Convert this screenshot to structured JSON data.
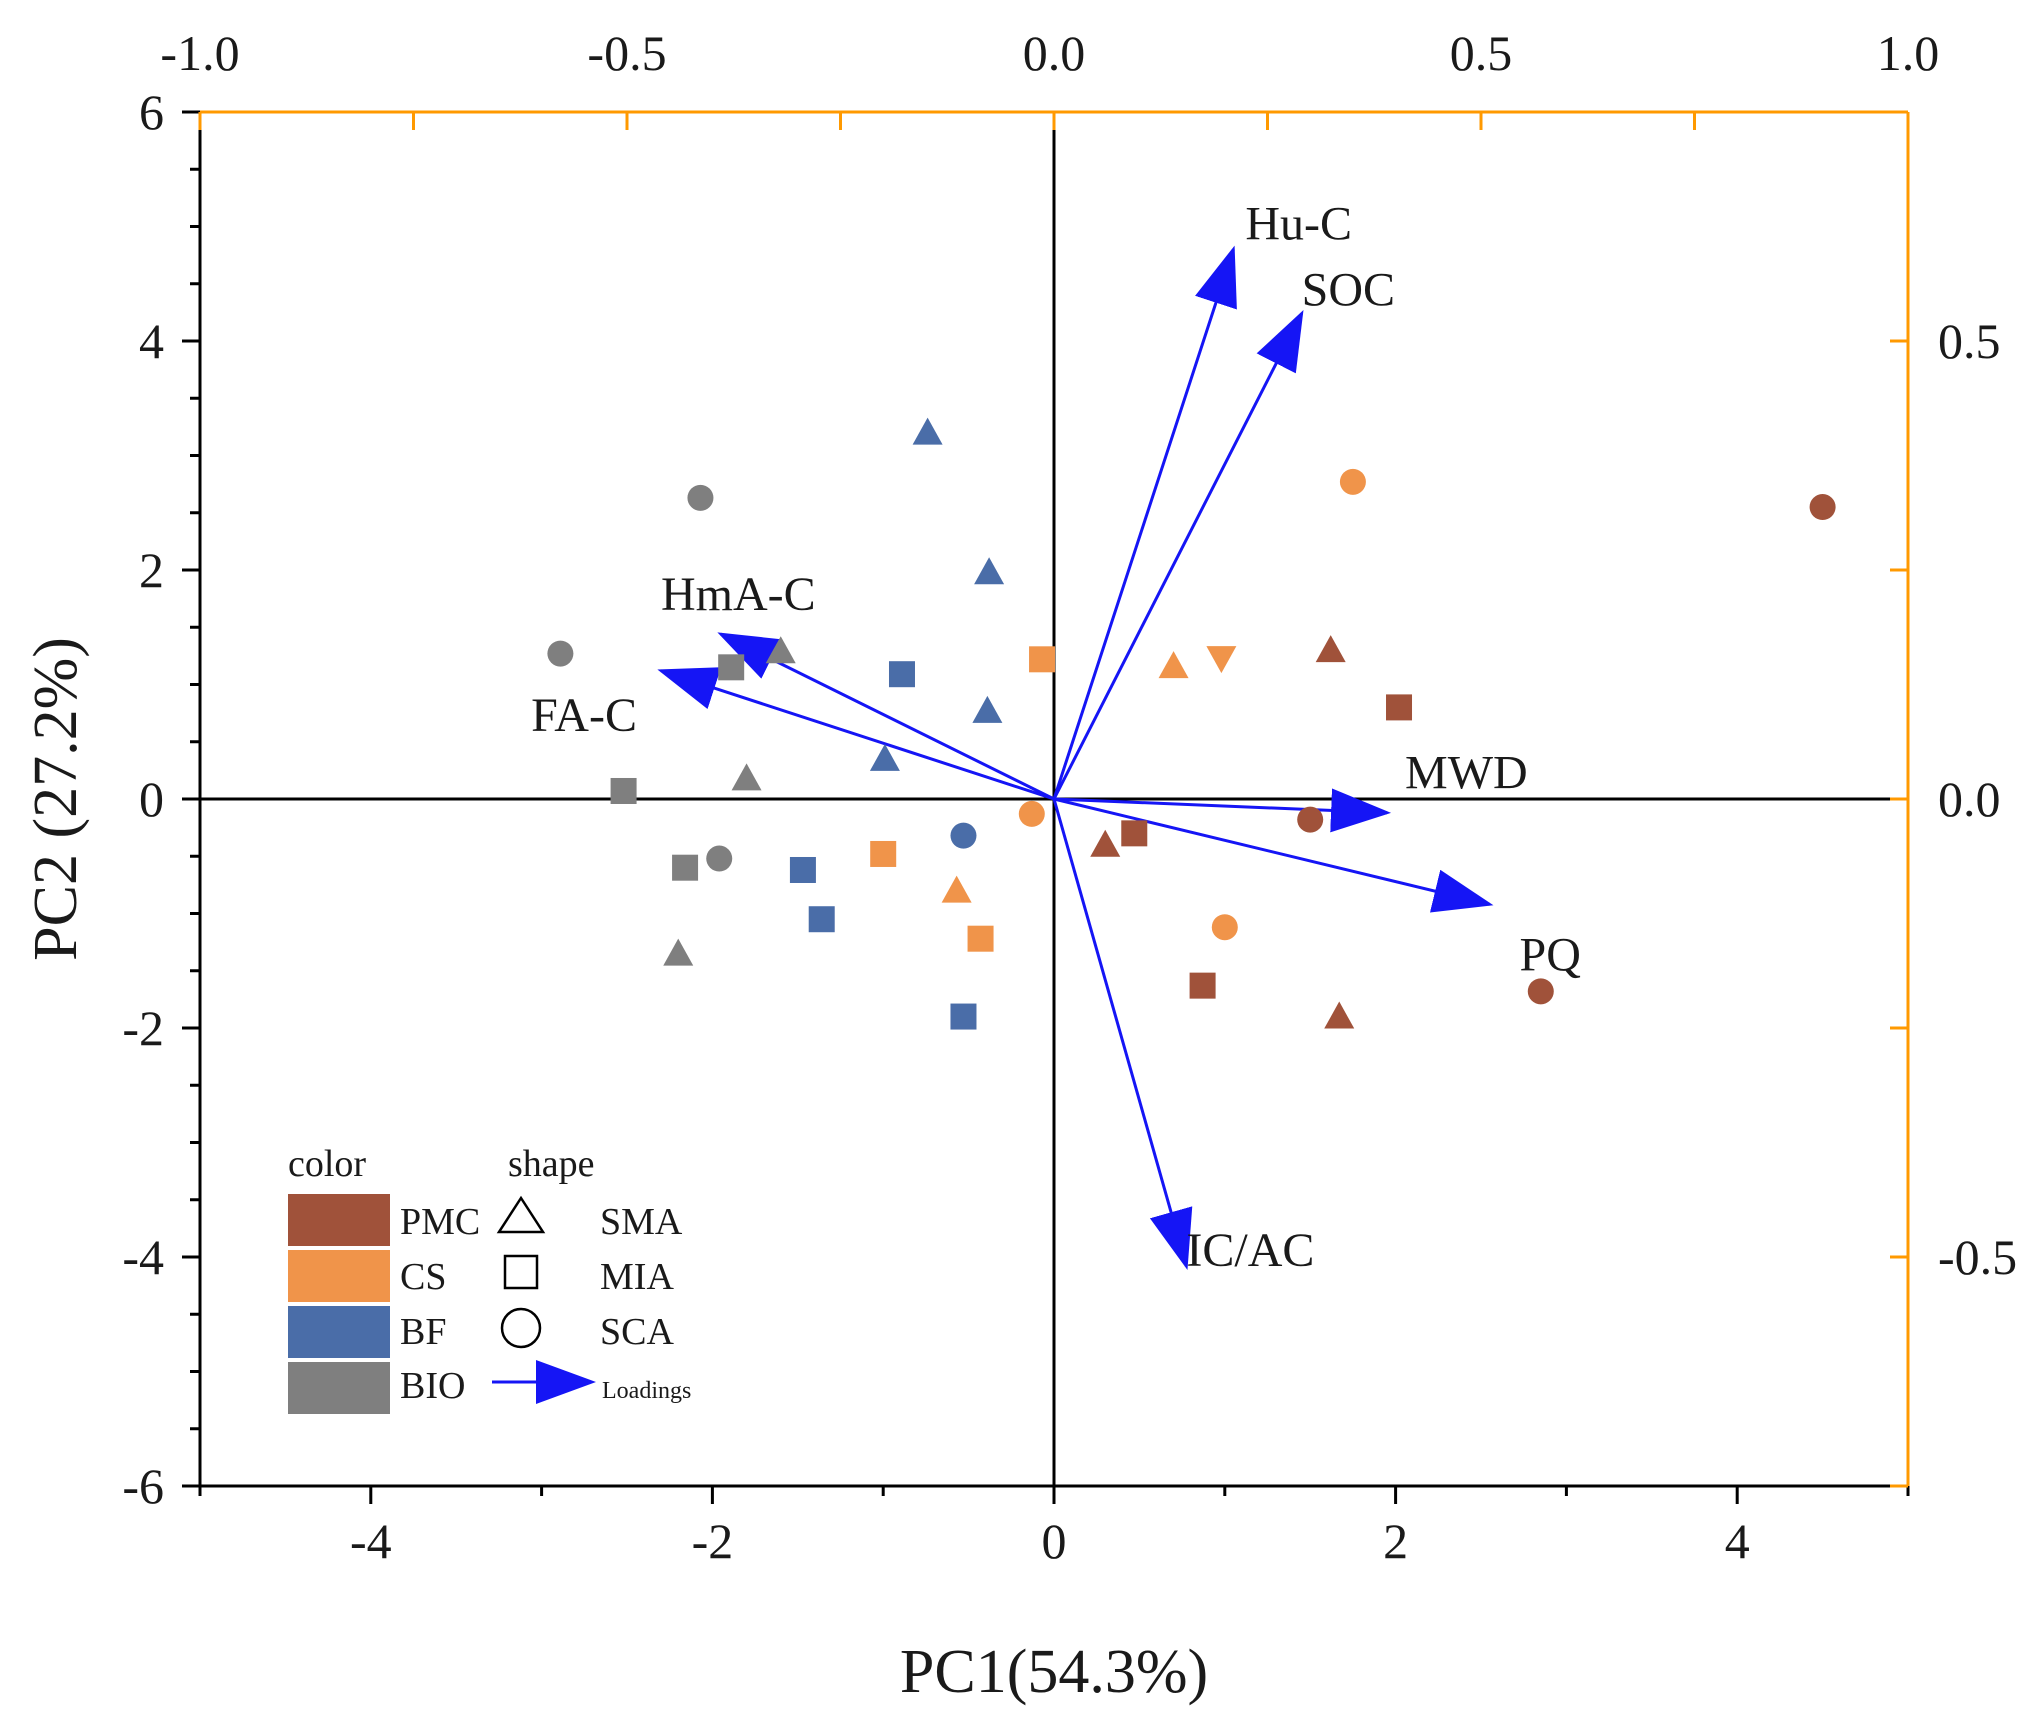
{
  "chart_data": {
    "type": "scatter",
    "subtype": "pca-biplot",
    "title": "",
    "xlabel": "PC1(54.3%)",
    "ylabel": "PC2 (27.2%)",
    "xlim": [
      -5,
      5
    ],
    "ylim": [
      -6,
      6
    ],
    "x_ticks": [
      -4,
      -2,
      0,
      2,
      4
    ],
    "y_ticks": [
      -6,
      -4,
      -2,
      0,
      2,
      4,
      6
    ],
    "secondary_x": {
      "range": [
        -1.0,
        1.0
      ],
      "ticks": [
        "-1.0",
        "-0.5",
        "0.0",
        "0.5",
        "1.0"
      ],
      "color": "#FF9900"
    },
    "secondary_y": {
      "range": [
        -0.75,
        0.75
      ],
      "ticks": [
        "-0.5",
        "0.0",
        "0.5"
      ],
      "color": "#FF9900"
    },
    "legend": {
      "color_title": "color",
      "shape_title": "shape",
      "colors": [
        {
          "label": "PMC",
          "color": "#A0523A"
        },
        {
          "label": "CS",
          "color": "#F0944A"
        },
        {
          "label": "BF",
          "color": "#4A6DA8"
        },
        {
          "label": "BIO",
          "color": "#7F7F7F"
        }
      ],
      "shapes": [
        {
          "label": "SMA",
          "marker": "triangle"
        },
        {
          "label": "MIA",
          "marker": "square"
        },
        {
          "label": "SCA",
          "marker": "circle"
        }
      ],
      "loadings_label": "Loadings",
      "placement": "bottom-left"
    },
    "arrow_color": "#1515F5",
    "loadings": [
      {
        "name": "Hu-C",
        "x": 0.21,
        "y": 0.6
      },
      {
        "name": "SOC",
        "x": 0.29,
        "y": 0.53
      },
      {
        "name": "HmA-C",
        "x": -0.39,
        "y": 0.18
      },
      {
        "name": "FA-C",
        "x": -0.46,
        "y": 0.14
      },
      {
        "name": "MWD",
        "x": 0.39,
        "y": -0.015
      },
      {
        "name": "PQ",
        "x": 0.51,
        "y": -0.115
      },
      {
        "name": "IC/AC",
        "x": 0.155,
        "y": -0.51
      }
    ],
    "series": [
      {
        "name": "PMC",
        "points": [
          {
            "marker": "circle",
            "x": 4.5,
            "y": 2.55
          },
          {
            "marker": "circle",
            "x": 2.85,
            "y": -1.68
          },
          {
            "marker": "circle",
            "x": 1.5,
            "y": -0.18
          },
          {
            "marker": "triangle",
            "x": 1.62,
            "y": 1.3
          },
          {
            "marker": "triangle",
            "x": 0.3,
            "y": -0.4
          },
          {
            "marker": "triangle",
            "x": 1.67,
            "y": -1.9
          },
          {
            "marker": "square",
            "x": 2.02,
            "y": 0.8
          },
          {
            "marker": "square",
            "x": 0.47,
            "y": -0.3
          },
          {
            "marker": "square",
            "x": 0.87,
            "y": -1.63
          }
        ]
      },
      {
        "name": "CS",
        "points": [
          {
            "marker": "circle",
            "x": 1.75,
            "y": 2.77
          },
          {
            "marker": "circle",
            "x": -0.13,
            "y": -0.13
          },
          {
            "marker": "circle",
            "x": 1.0,
            "y": -1.12
          },
          {
            "marker": "triangle",
            "x": 0.7,
            "y": 1.16
          },
          {
            "marker": "triangle_down",
            "x": 0.98,
            "y": 1.23
          },
          {
            "marker": "triangle",
            "x": -0.57,
            "y": -0.8
          },
          {
            "marker": "square",
            "x": -0.07,
            "y": 1.22
          },
          {
            "marker": "square",
            "x": -1.0,
            "y": -0.48
          },
          {
            "marker": "square",
            "x": -0.43,
            "y": -1.22
          }
        ]
      },
      {
        "name": "BF",
        "points": [
          {
            "marker": "circle",
            "x": -0.53,
            "y": -0.32
          },
          {
            "marker": "triangle",
            "x": -0.74,
            "y": 3.2
          },
          {
            "marker": "triangle",
            "x": -0.38,
            "y": 1.98
          },
          {
            "marker": "triangle",
            "x": -0.39,
            "y": 0.77
          },
          {
            "marker": "triangle",
            "x": -0.99,
            "y": 0.35
          },
          {
            "marker": "square",
            "x": -0.89,
            "y": 1.09
          },
          {
            "marker": "square",
            "x": -1.47,
            "y": -0.62
          },
          {
            "marker": "square",
            "x": -1.36,
            "y": -1.05
          },
          {
            "marker": "square",
            "x": -0.53,
            "y": -1.9
          }
        ]
      },
      {
        "name": "BIO",
        "points": [
          {
            "marker": "circle",
            "x": -2.07,
            "y": 2.63
          },
          {
            "marker": "circle",
            "x": -2.89,
            "y": 1.27
          },
          {
            "marker": "circle",
            "x": -1.96,
            "y": -0.52
          },
          {
            "marker": "triangle",
            "x": -1.6,
            "y": 1.29
          },
          {
            "marker": "triangle",
            "x": -1.8,
            "y": 0.18
          },
          {
            "marker": "triangle",
            "x": -2.2,
            "y": -1.35
          },
          {
            "marker": "square",
            "x": -1.89,
            "y": 1.15
          },
          {
            "marker": "square",
            "x": -2.52,
            "y": 0.07
          },
          {
            "marker": "square",
            "x": -2.16,
            "y": -0.6
          }
        ]
      }
    ]
  }
}
